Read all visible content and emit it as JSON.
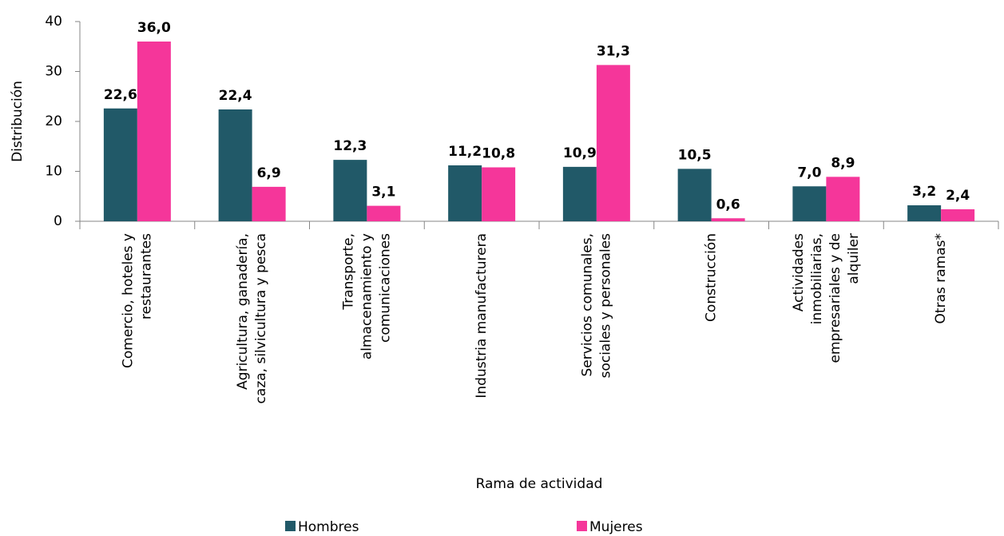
{
  "chart_data": {
    "type": "bar",
    "x_label": "Rama de actividad",
    "y_label": "Distribución",
    "categories": [
      "Comercio, hoteles y\nrestaurantes",
      "Agricultura, ganadería,\ncaza, silvicultura y pesca",
      "Transporte,\nalmacenamiento y\ncomunicaciones",
      "Industria manufacturera",
      "Servicios comunales,\nsociales y personales",
      "Construcción",
      "Actividades\ninmobiliarias,\nempresariales y de\nalquiler",
      "Otras ramas*"
    ],
    "series": [
      {
        "name": "Hombres",
        "color": "#215968",
        "values": [
          22.6,
          22.4,
          12.3,
          11.2,
          10.9,
          10.5,
          7.0,
          3.2
        ],
        "value_labels": [
          "22,6",
          "22,4",
          "12,3",
          "11,2",
          "10,9",
          "10,5",
          "7,0",
          "3,2"
        ]
      },
      {
        "name": "Mujeres",
        "color": "#f5369a",
        "values": [
          36.0,
          6.9,
          3.1,
          10.8,
          31.3,
          0.6,
          8.9,
          2.4
        ],
        "value_labels": [
          "36,0",
          "6,9",
          "3,1",
          "10,8",
          "31,3",
          "0,6",
          "8,9",
          "2,4"
        ]
      }
    ],
    "ylim": [
      0,
      40
    ],
    "yticks": [
      0,
      10,
      20,
      30,
      40
    ],
    "grid": false,
    "legend": "bottom"
  }
}
